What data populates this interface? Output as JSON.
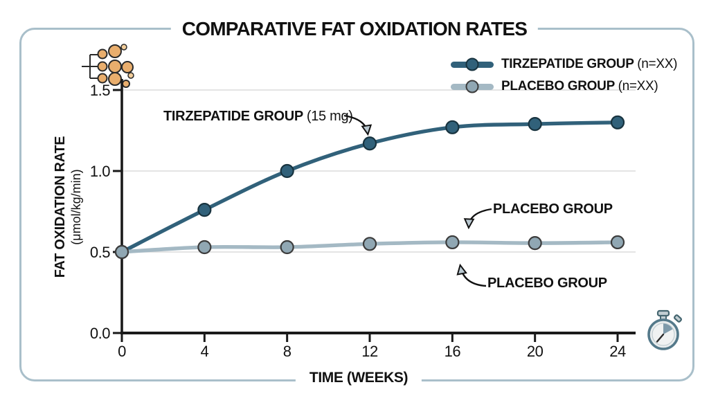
{
  "title": "COMPARATIVE FAT OXIDATION RATES",
  "x_axis_label": "TIME (WEEKS)",
  "y_axis_label": "FAT OXIDATION RATE",
  "y_axis_sublabel": "(μmol/kg/min)",
  "legend": {
    "position": "top-right",
    "items": [
      {
        "label": "TIRZEPATIDE GROUP",
        "n_suffix": "(n=XX)",
        "color": "#31617a",
        "marker_fill": "#31617a",
        "marker_border": "#18333f"
      },
      {
        "label": "PLACEBO GROUP",
        "n_suffix": "(n=XX)",
        "color": "#a4b9c4",
        "marker_fill": "#90a7b3",
        "marker_border": "#3c3c3c"
      }
    ]
  },
  "annotations": {
    "tirzepatide": {
      "label": "TIRZEPATIDE GROUP",
      "suffix": "(15 mg)"
    },
    "placebo_upper": {
      "label": "PLACEBO GROUP"
    },
    "placebo_lower": {
      "label": "PLACEBO GROUP"
    }
  },
  "icons": {
    "fat_molecule": {
      "name": "fat-molecule-icon",
      "fill": "#e9ae6d",
      "fill_light": "#f2cd9a",
      "stroke": "#2a2a2a"
    },
    "stopwatch": {
      "name": "stopwatch-icon",
      "stroke": "#54798a",
      "face": "#e9edee",
      "wedge": "#7e9aaa"
    }
  },
  "colors": {
    "frame_border": "#a9bfca",
    "axis": "#1a1a1a",
    "gridline": "#dcdcdc",
    "arrowhead_fill": "#b9c8d0",
    "background": "#ffffff"
  },
  "chart_data": {
    "type": "line",
    "title": "COMPARATIVE FAT OXIDATION RATES",
    "xlabel": "TIME (WEEKS)",
    "ylabel": "FAT OXIDATION RATE (μmol/kg/min)",
    "x": [
      0,
      4,
      8,
      12,
      16,
      20,
      24
    ],
    "xticks": [
      {
        "value": 0,
        "label": "0"
      },
      {
        "value": 4,
        "label": "4"
      },
      {
        "value": 8,
        "label": "8"
      },
      {
        "value": 12,
        "label": "12"
      },
      {
        "value": 16,
        "label": "16"
      },
      {
        "value": 20,
        "label": "20"
      },
      {
        "value": 24,
        "label": "24"
      }
    ],
    "yticks": [
      {
        "value": 0.0,
        "label": "0.0"
      },
      {
        "value": 0.5,
        "label": "0.5"
      },
      {
        "value": 1.0,
        "label": "1.0"
      },
      {
        "value": 1.5,
        "label": "1.5"
      }
    ],
    "xlim": [
      0,
      24
    ],
    "ylim": [
      0,
      1.5
    ],
    "grid": true,
    "legend_position": "top-right",
    "series": [
      {
        "name": "TIRZEPATIDE GROUP (n=XX)",
        "color": "#31617a",
        "marker_fill": "#31617a",
        "marker_border": "#18333f",
        "values": [
          0.5,
          0.76,
          1.0,
          1.17,
          1.27,
          1.29,
          1.3
        ]
      },
      {
        "name": "PLACEBO GROUP (n=XX)",
        "color": "#a4b9c4",
        "marker_fill": "#90a7b3",
        "marker_border": "#3c3c3c",
        "values": [
          0.5,
          0.53,
          0.53,
          0.55,
          0.56,
          0.555,
          0.56
        ]
      }
    ]
  }
}
